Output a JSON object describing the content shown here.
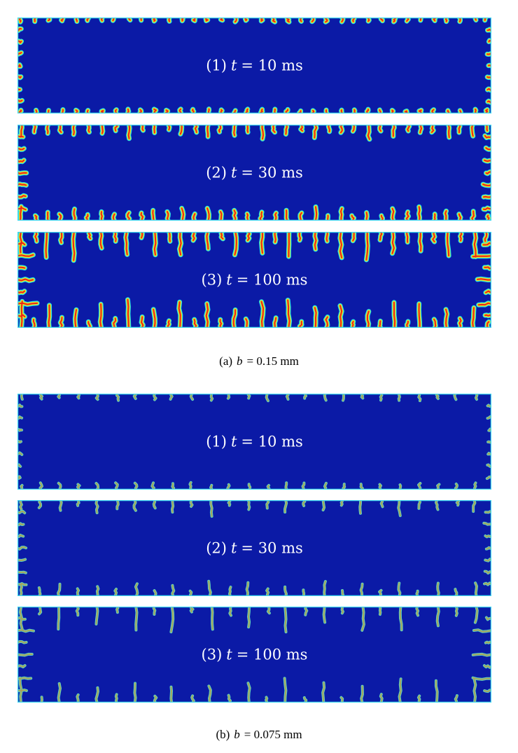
{
  "figure": {
    "groups": [
      {
        "caption": {
          "index": "(a)",
          "variable": "b",
          "expression": "= 0.15 mm"
        },
        "panels": [
          {
            "index": "(1)",
            "variable": "t",
            "expression": "= 10 ms"
          },
          {
            "index": "(2)",
            "variable": "t",
            "expression": "= 30 ms"
          },
          {
            "index": "(3)",
            "variable": "t",
            "expression": "= 100 ms"
          }
        ]
      },
      {
        "caption": {
          "index": "(b)",
          "variable": "b",
          "expression": "= 0.075 mm"
        },
        "panels": [
          {
            "index": "(1)",
            "variable": "t",
            "expression": "= 10 ms"
          },
          {
            "index": "(2)",
            "variable": "t",
            "expression": "= 30 ms"
          },
          {
            "index": "(3)",
            "variable": "t",
            "expression": "= 100 ms"
          }
        ]
      }
    ]
  }
}
